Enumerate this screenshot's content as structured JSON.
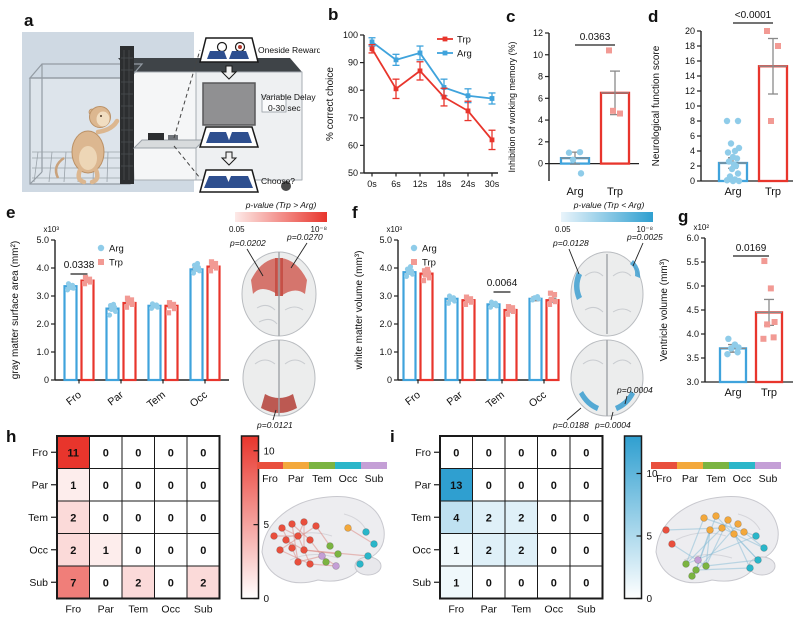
{
  "colors": {
    "trp": "#e8352c",
    "trp_light": "#f29a94",
    "arg": "#3fa3dc",
    "arg_light": "#8fcce9",
    "error": "#8a8a8a",
    "heat_red": "#e8352c",
    "heat_blue": "#2f9fd0",
    "panel_a_bg": "#cfd9e3",
    "cover_blue": "#2e4f8f"
  },
  "network": {
    "regions": [
      {
        "label": "Fro",
        "color": "#e94f3d"
      },
      {
        "label": "Par",
        "color": "#f3a83b"
      },
      {
        "label": "Tem",
        "color": "#7bb441"
      },
      {
        "label": "Occ",
        "color": "#2ab6c9"
      },
      {
        "label": "Sub",
        "color": "#c49fd6"
      }
    ]
  },
  "panel_a": {
    "letter": "a",
    "step1_label": "Oneside Reward",
    "step2_label_line1": "Variable Delay",
    "step2_label_line2": "0-30 sec",
    "step3_label": "Choose?"
  },
  "panel_b": {
    "letter": "b",
    "chart": {
      "type": "line",
      "ylabel": "% correct choice",
      "categories": [
        "0s",
        "6s",
        "12s",
        "18s",
        "24s",
        "30s"
      ],
      "ylim": [
        50,
        100
      ],
      "yticks": [
        50,
        60,
        70,
        80,
        90,
        100
      ],
      "series": [
        {
          "name": "Trp",
          "color": "trp",
          "values": [
            95,
            80.5,
            87,
            77.5,
            72.5,
            62
          ],
          "errors": [
            1.5,
            3.5,
            3.3,
            3.2,
            3.5,
            3.5
          ]
        },
        {
          "name": "Arg",
          "color": "arg",
          "values": [
            97.5,
            91,
            93.5,
            81,
            78,
            77
          ],
          "errors": [
            1.5,
            2,
            2.5,
            3,
            2.5,
            2
          ]
        }
      ]
    }
  },
  "panel_c": {
    "letter": "c",
    "chart": {
      "type": "bar-scatter",
      "ylabel": "Inhibition of working memory (%)",
      "p_label": "0.0363",
      "yticks": [
        0,
        2,
        4,
        6,
        8,
        10,
        12
      ],
      "groups": [
        {
          "name": "Arg",
          "mean": 0.5,
          "err": 0.55,
          "points": [
            1.0,
            1.05,
            0.35,
            -0.9
          ]
        },
        {
          "name": "Trp",
          "mean": 6.5,
          "err": 2.0,
          "points": [
            10.4,
            4.6,
            4.85
          ]
        }
      ]
    }
  },
  "panel_d": {
    "letter": "d",
    "chart": {
      "type": "bar-scatter",
      "ylabel": "Neurological function score",
      "p_label": "<0.0001",
      "yticks": [
        0,
        2,
        4,
        6,
        8,
        10,
        12,
        14,
        16,
        18,
        20
      ],
      "groups": [
        {
          "name": "Arg",
          "mean": 2.4,
          "err": 0.7,
          "points": [
            8,
            8,
            5,
            4.4,
            4,
            3.8,
            3.2,
            3,
            2.6,
            2.2,
            2,
            1.6,
            1,
            0.6,
            0.2,
            0.1,
            0,
            0
          ]
        },
        {
          "name": "Trp",
          "mean": 15.3,
          "err": 3.7,
          "points": [
            20,
            18,
            8
          ]
        }
      ]
    }
  },
  "panel_e": {
    "letter": "e",
    "chart": {
      "type": "grouped-bar",
      "ylabel": "gray matter surface area (mm²)",
      "multiplier": "x10³",
      "p_label": "0.0338",
      "p_index": 0,
      "categories": [
        "Fro",
        "Par",
        "Tem",
        "Occ"
      ],
      "yticks": [
        0,
        1,
        2,
        3,
        4,
        5
      ],
      "series": [
        {
          "name": "Arg",
          "means": [
            3.35,
            2.55,
            2.65,
            3.95
          ],
          "err": 0.06,
          "points": [
            [
              3.22,
              3.28,
              3.33,
              3.38,
              3.44,
              3.3
            ],
            [
              2.32,
              2.45,
              2.52,
              2.6,
              2.66,
              2.7
            ],
            [
              2.56,
              2.6,
              2.64,
              2.68,
              2.72
            ],
            [
              3.82,
              3.9,
              3.96,
              4.02,
              4.1,
              4.16
            ]
          ]
        },
        {
          "name": "Trp",
          "means": [
            3.55,
            2.75,
            2.65,
            4.05
          ],
          "err": 0.06,
          "points": [
            [
              3.44,
              3.5,
              3.55,
              3.6,
              3.66
            ],
            [
              2.6,
              2.7,
              2.76,
              2.86,
              2.92
            ],
            [
              2.4,
              2.55,
              2.64,
              2.7,
              2.76
            ],
            [
              3.9,
              4.0,
              4.06,
              4.16,
              4.22
            ]
          ]
        }
      ]
    },
    "brain": {
      "colorbar_label": "p-value (Trp > Arg)",
      "cb_min": "0.05",
      "cb_max": "10⁻⁸",
      "ann": [
        "p=0.0202",
        "p=0.0270",
        "p=0.0121"
      ]
    }
  },
  "panel_f": {
    "letter": "f",
    "chart": {
      "type": "grouped-bar",
      "ylabel": "white matter volume (mm³)",
      "multiplier": "x10³",
      "p_label": "0.0064",
      "p_index": 2,
      "categories": [
        "Fro",
        "Par",
        "Tem",
        "Occ"
      ],
      "yticks": [
        0,
        1,
        2,
        3,
        4,
        5
      ],
      "series": [
        {
          "name": "Arg",
          "means": [
            3.85,
            2.9,
            2.7,
            2.9
          ],
          "err": 0.07,
          "points": [
            [
              3.7,
              3.78,
              3.84,
              3.9,
              3.96,
              4.05
            ],
            [
              2.74,
              2.82,
              2.88,
              2.94,
              3.0
            ],
            [
              2.6,
              2.65,
              2.7,
              2.74,
              2.78
            ],
            [
              2.86,
              2.9,
              2.94,
              2.98
            ]
          ]
        },
        {
          "name": "Trp",
          "means": [
            3.8,
            2.85,
            2.5,
            2.85
          ],
          "err": 0.07,
          "points": [
            [
              3.55,
              3.65,
              3.75,
              3.82,
              3.9,
              3.95
            ],
            [
              2.7,
              2.78,
              2.84,
              2.9,
              2.96
            ],
            [
              2.35,
              2.45,
              2.52,
              2.58,
              2.62
            ],
            [
              2.7,
              2.8,
              2.88,
              3.05,
              3.1
            ]
          ]
        }
      ]
    },
    "brain": {
      "colorbar_label": "p-value (Trp < Arg)",
      "cb_min": "0.05",
      "cb_max": "10⁻⁸",
      "ann": [
        "p=0.0128",
        "p=0.0025",
        "p=0.0188",
        "p=0.0004",
        "p=0.0004"
      ]
    }
  },
  "panel_g": {
    "letter": "g",
    "chart": {
      "type": "bar-scatter",
      "ylabel": "Ventricle volume (mm³)",
      "multiplier": "x10²",
      "p_label": "0.0169",
      "yticks": [
        3.0,
        3.5,
        4.0,
        4.5,
        5.0,
        5.5,
        6.0
      ],
      "groups": [
        {
          "name": "Arg",
          "mean": 3.7,
          "err": 0.08,
          "points": [
            3.58,
            3.62,
            3.7,
            3.72,
            3.78,
            3.9
          ]
        },
        {
          "name": "Trp",
          "mean": 4.45,
          "err": 0.27,
          "points": [
            3.9,
            3.93,
            4.2,
            4.25,
            4.95,
            5.52
          ]
        }
      ]
    }
  },
  "panel_h": {
    "letter": "h",
    "heatmap": {
      "rows": [
        "Fro",
        "Par",
        "Tem",
        "Occ",
        "Sub"
      ],
      "cols": [
        "Fro",
        "Par",
        "Tem",
        "Occ",
        "Sub"
      ],
      "values": [
        [
          11,
          0,
          0,
          0,
          0
        ],
        [
          1,
          0,
          0,
          0,
          0
        ],
        [
          2,
          0,
          0,
          0,
          0
        ],
        [
          2,
          1,
          0,
          0,
          0
        ],
        [
          7,
          0,
          2,
          0,
          2
        ]
      ],
      "cmax": 11,
      "color": "#e8352c",
      "colorbar_ticks": [
        {
          "v": 10,
          "label": "10"
        },
        {
          "v": 5,
          "label": "5"
        },
        {
          "v": 0,
          "label": "0"
        }
      ]
    },
    "edge_color": "#dd8d88"
  },
  "panel_i": {
    "letter": "i",
    "heatmap": {
      "rows": [
        "Fro",
        "Par",
        "Tem",
        "Occ",
        "Sub"
      ],
      "cols": [
        "Fro",
        "Par",
        "Tem",
        "Occ",
        "Sub"
      ],
      "values": [
        [
          0,
          0,
          0,
          0,
          0
        ],
        [
          13,
          0,
          0,
          0,
          0
        ],
        [
          4,
          2,
          2,
          0,
          0
        ],
        [
          1,
          2,
          2,
          0,
          0
        ],
        [
          1,
          0,
          0,
          0,
          0
        ]
      ],
      "cmax": 13,
      "color": "#2f9fd0",
      "colorbar_ticks": [
        {
          "v": 10,
          "label": "10"
        },
        {
          "v": 5,
          "label": "5"
        },
        {
          "v": 0,
          "label": "0"
        }
      ]
    },
    "edge_color": "#8fc0d8"
  }
}
